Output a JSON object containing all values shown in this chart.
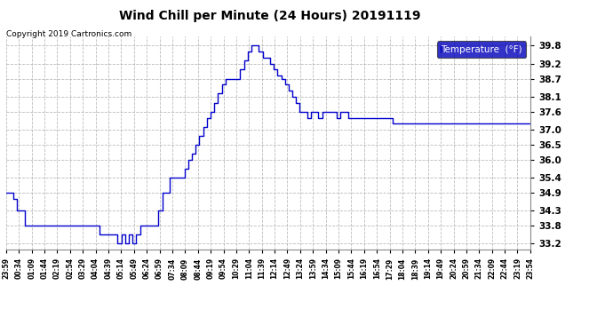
{
  "title": "Wind Chill per Minute (24 Hours) 20191119",
  "copyright": "Copyright 2019 Cartronics.com",
  "legend_label": "Temperature  (°F)",
  "ylim": [
    33.0,
    40.1
  ],
  "yticks": [
    33.2,
    33.8,
    34.3,
    34.9,
    35.4,
    36.0,
    36.5,
    37.0,
    37.6,
    38.1,
    38.7,
    39.2,
    39.8
  ],
  "line_color": "#0000cc",
  "bg_color": "#ffffff",
  "grid_color": "#aaaaaa",
  "legend_bg": "#0000bb",
  "legend_text": "#ffffff",
  "x_labels": [
    "23:59",
    "00:34",
    "01:09",
    "01:44",
    "02:19",
    "02:54",
    "03:29",
    "04:04",
    "04:39",
    "05:14",
    "05:49",
    "06:24",
    "06:59",
    "07:34",
    "08:09",
    "08:44",
    "09:19",
    "09:54",
    "10:29",
    "11:04",
    "11:39",
    "12:14",
    "12:49",
    "13:24",
    "13:59",
    "14:34",
    "15:09",
    "15:44",
    "16:19",
    "16:54",
    "17:29",
    "18:04",
    "18:39",
    "19:14",
    "19:49",
    "20:24",
    "20:59",
    "21:34",
    "22:09",
    "22:44",
    "23:19",
    "23:54"
  ],
  "data_y": [
    34.9,
    34.9,
    34.7,
    34.3,
    34.3,
    33.8,
    33.8,
    33.8,
    33.8,
    33.8,
    33.8,
    33.8,
    33.8,
    33.8,
    33.8,
    33.8,
    33.8,
    33.8,
    33.8,
    33.8,
    33.8,
    33.8,
    33.8,
    33.8,
    33.8,
    33.5,
    33.5,
    33.5,
    33.5,
    33.5,
    33.2,
    33.5,
    33.2,
    33.5,
    33.2,
    33.5,
    33.8,
    33.8,
    33.8,
    33.8,
    33.8,
    34.3,
    34.9,
    34.9,
    35.4,
    35.4,
    35.4,
    35.4,
    35.7,
    36.0,
    36.2,
    36.5,
    36.8,
    37.1,
    37.4,
    37.6,
    37.9,
    38.2,
    38.5,
    38.7,
    38.7,
    38.7,
    38.7,
    39.0,
    39.3,
    39.6,
    39.8,
    39.8,
    39.6,
    39.4,
    39.4,
    39.2,
    39.0,
    38.8,
    38.7,
    38.5,
    38.3,
    38.1,
    37.9,
    37.6,
    37.6,
    37.4,
    37.6,
    37.6,
    37.4,
    37.6,
    37.6,
    37.6,
    37.6,
    37.4,
    37.6,
    37.6,
    37.4,
    37.4,
    37.4,
    37.4,
    37.4,
    37.4,
    37.4,
    37.4,
    37.4,
    37.4,
    37.4,
    37.4,
    37.2,
    37.2,
    37.2,
    37.2,
    37.2,
    37.2,
    37.2,
    37.2,
    37.2,
    37.2,
    37.2,
    37.2,
    37.2,
    37.2,
    37.2,
    37.2,
    37.2,
    37.2,
    37.2,
    37.2,
    37.2,
    37.2,
    37.2,
    37.2,
    37.2,
    37.2,
    37.2,
    37.2,
    37.2,
    37.2,
    37.2,
    37.2,
    37.2,
    37.2,
    37.2,
    37.2,
    37.2,
    37.2
  ]
}
